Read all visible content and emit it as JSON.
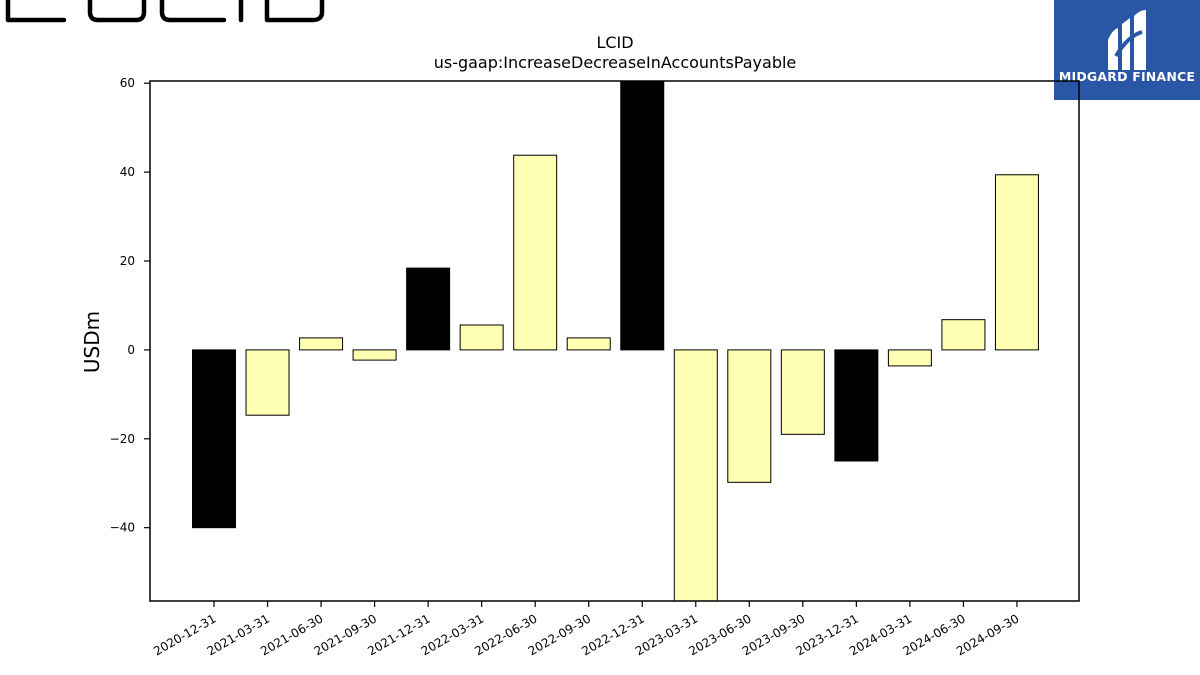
{
  "brand": {
    "logo_text": "LUCID"
  },
  "badge": {
    "name": "MIDGARD FINANCE",
    "background": "#2a56a6",
    "text_color": "#ffffff"
  },
  "chart_data": {
    "type": "bar",
    "title": "LCID",
    "subtitle": "us-gaap:IncreaseDecreaseInAccountsPayable",
    "xlabel": "",
    "ylabel": "USDm",
    "ylim": [
      -56.5,
      60.5
    ],
    "yticks": [
      -40,
      -20,
      0,
      20,
      40,
      60
    ],
    "ytick_labels": [
      "−40",
      "−20",
      "0",
      "20",
      "40",
      "60"
    ],
    "grid": false,
    "categories": [
      "2020-12-31",
      "2021-03-31",
      "2021-06-30",
      "2021-09-30",
      "2021-12-31",
      "2022-03-31",
      "2022-06-30",
      "2022-09-30",
      "2022-12-31",
      "2023-03-31",
      "2023-06-30",
      "2023-09-30",
      "2023-12-31",
      "2024-03-31",
      "2024-06-30",
      "2024-09-30"
    ],
    "values": [
      -40,
      -14.7,
      2.7,
      -2.3,
      18.4,
      5.6,
      43.8,
      2.7,
      62.0,
      -57.0,
      -29.8,
      -19.0,
      -25.0,
      -3.6,
      6.8,
      39.4
    ],
    "colors": {
      "fiscal_year_end": "#000000",
      "quarter": "#ffffb3",
      "edge": "#000000"
    },
    "fiscal_year_end_flags": [
      true,
      false,
      false,
      false,
      true,
      false,
      false,
      false,
      true,
      false,
      false,
      false,
      true,
      false,
      false,
      false
    ]
  }
}
